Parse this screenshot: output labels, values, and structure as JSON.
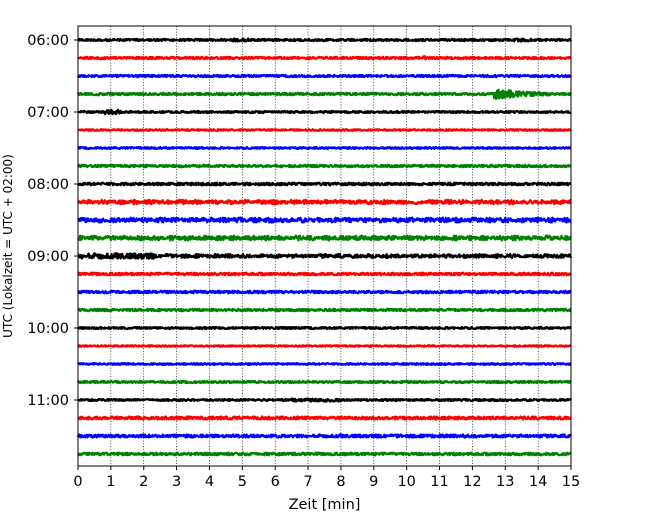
{
  "chart_data": {
    "type": "line",
    "title": "",
    "xlabel": "Zeit  [min]",
    "ylabel": "UTC (Lokalzeit = UTC + 02:00)",
    "xlim": [
      0,
      15
    ],
    "x_ticks": [
      "0",
      "1",
      "2",
      "3",
      "4",
      "5",
      "6",
      "7",
      "8",
      "9",
      "10",
      "11",
      "12",
      "13",
      "14",
      "15"
    ],
    "y_ticks": [
      "06:00",
      "07:00",
      "08:00",
      "09:00",
      "10:00",
      "11:00"
    ],
    "grid": "vertical dotted at each minute",
    "traces_per_hour": 4,
    "trace_minutes": 15,
    "color_cycle": [
      "#000000",
      "#ff0000",
      "#0000ff",
      "#008000"
    ],
    "traces": [
      {
        "start": "06:00",
        "color": "#000000",
        "amplitude": 2.2,
        "events": [
          {
            "t0": 4.7,
            "t1": 5.2,
            "amp": 3.0
          },
          {
            "t0": 13.2,
            "t1": 13.8,
            "amp": 3.0
          }
        ]
      },
      {
        "start": "06:15",
        "color": "#ff0000",
        "amplitude": 2.3,
        "events": [
          {
            "t0": 10.5,
            "t1": 10.6,
            "amp": 4.0
          }
        ]
      },
      {
        "start": "06:30",
        "color": "#0000ff",
        "amplitude": 2.2,
        "events": []
      },
      {
        "start": "06:45",
        "color": "#008000",
        "amplitude": 2.4,
        "events": [
          {
            "t0": 12.65,
            "t1": 14.6,
            "amp": 11.0,
            "type": "quake"
          }
        ]
      },
      {
        "start": "07:00",
        "color": "#000000",
        "amplitude": 2.0,
        "events": [
          {
            "t0": 0.8,
            "t1": 1.3,
            "amp": 4.5
          }
        ]
      },
      {
        "start": "07:15",
        "color": "#ff0000",
        "amplitude": 1.6,
        "events": []
      },
      {
        "start": "07:30",
        "color": "#0000ff",
        "amplitude": 1.8,
        "events": []
      },
      {
        "start": "07:45",
        "color": "#008000",
        "amplitude": 2.4,
        "events": []
      },
      {
        "start": "08:00",
        "color": "#000000",
        "amplitude": 2.6,
        "events": []
      },
      {
        "start": "08:15",
        "color": "#ff0000",
        "amplitude": 4.5,
        "events": [],
        "beating": true
      },
      {
        "start": "08:30",
        "color": "#0000ff",
        "amplitude": 5.0,
        "events": [],
        "beating": true
      },
      {
        "start": "08:45",
        "color": "#008000",
        "amplitude": 5.0,
        "events": [],
        "beating": true
      },
      {
        "start": "09:00",
        "color": "#000000",
        "amplitude": 4.0,
        "events": [
          {
            "t0": 0.0,
            "t1": 2.3,
            "amp": 5.5
          }
        ],
        "beating": true
      },
      {
        "start": "09:15",
        "color": "#ff0000",
        "amplitude": 2.6,
        "events": []
      },
      {
        "start": "09:30",
        "color": "#0000ff",
        "amplitude": 2.6,
        "events": []
      },
      {
        "start": "09:45",
        "color": "#008000",
        "amplitude": 2.4,
        "events": []
      },
      {
        "start": "10:00",
        "color": "#000000",
        "amplitude": 2.0,
        "events": []
      },
      {
        "start": "10:15",
        "color": "#ff0000",
        "amplitude": 1.5,
        "events": []
      },
      {
        "start": "10:30",
        "color": "#0000ff",
        "amplitude": 1.7,
        "events": []
      },
      {
        "start": "10:45",
        "color": "#008000",
        "amplitude": 2.1,
        "events": []
      },
      {
        "start": "11:00",
        "color": "#000000",
        "amplitude": 2.0,
        "events": [
          {
            "t0": 6.5,
            "t1": 8.0,
            "amp": 3.2
          }
        ]
      },
      {
        "start": "11:15",
        "color": "#ff0000",
        "amplitude": 3.0,
        "events": []
      },
      {
        "start": "11:30",
        "color": "#0000ff",
        "amplitude": 3.0,
        "events": []
      },
      {
        "start": "11:45",
        "color": "#008000",
        "amplitude": 2.6,
        "events": []
      }
    ]
  }
}
